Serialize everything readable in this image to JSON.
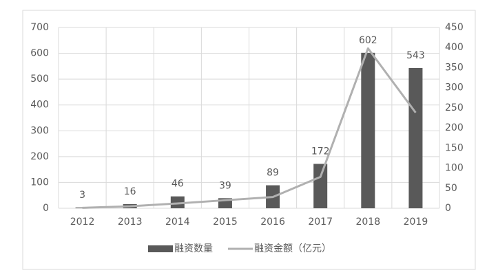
{
  "chart_data": {
    "type": "combo",
    "categories": [
      "2012",
      "2013",
      "2014",
      "2015",
      "2016",
      "2017",
      "2018",
      "2019"
    ],
    "series": [
      {
        "name": "融资数量",
        "type": "bar",
        "color": "#595959",
        "values": [
          3,
          16,
          46,
          39,
          89,
          172,
          602,
          543
        ]
      },
      {
        "name": "融资金额（亿元）",
        "type": "line",
        "axis": "y2",
        "color": "#b0b0b0",
        "values": [
          1,
          5,
          12,
          20,
          28,
          78,
          398,
          238
        ]
      }
    ],
    "ylim": [
      0,
      700
    ],
    "yticks": [
      0,
      100,
      200,
      300,
      400,
      500,
      600,
      700
    ],
    "y2lim": [
      0,
      450
    ],
    "y2ticks": [
      0,
      50,
      100,
      150,
      200,
      250,
      300,
      350,
      400,
      450
    ],
    "grid": true,
    "legend": "bottom"
  }
}
